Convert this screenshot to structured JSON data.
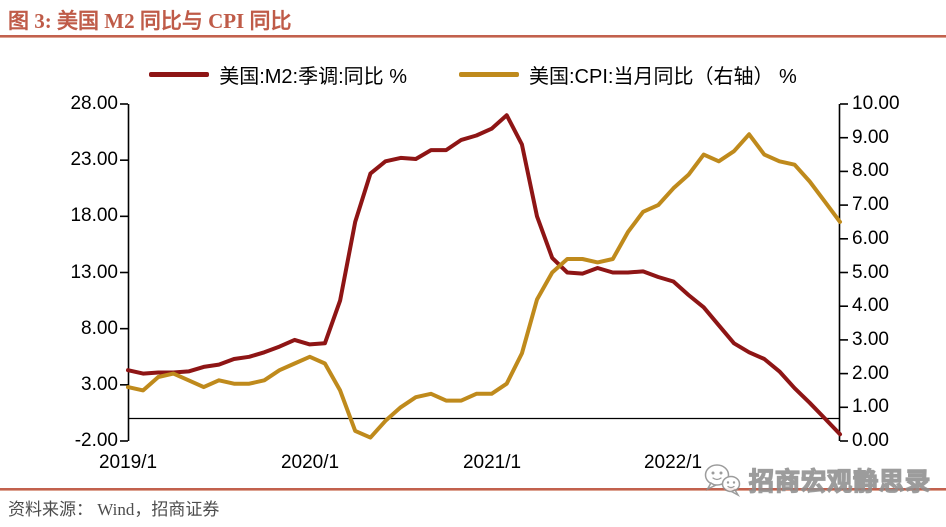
{
  "header": {
    "title": "图 3: 美国 M2 同比与 CPI 同比"
  },
  "footer": {
    "source_label": "资料来源： Wind，招商证券"
  },
  "watermark": {
    "text": "招商宏观静思录",
    "icon": "wechat-chat-bubbles-icon"
  },
  "colors": {
    "title_accent": "#bf5b48",
    "rule": "#c2614e",
    "m2_line": "#8e1515",
    "cpi_line": "#bf8a1c",
    "axis": "#000000",
    "source_text": "#4d4d4d"
  },
  "chart_data": {
    "type": "line",
    "title": "图 3: 美国 M2 同比与 CPI 同比",
    "grid": false,
    "legend_position": "top-center",
    "categories": [
      "2019/1",
      "2019/2",
      "2019/3",
      "2019/4",
      "2019/5",
      "2019/6",
      "2019/7",
      "2019/8",
      "2019/9",
      "2019/10",
      "2019/11",
      "2019/12",
      "2020/1",
      "2020/2",
      "2020/3",
      "2020/4",
      "2020/5",
      "2020/6",
      "2020/7",
      "2020/8",
      "2020/9",
      "2020/10",
      "2020/11",
      "2020/12",
      "2021/1",
      "2021/2",
      "2021/3",
      "2021/4",
      "2021/5",
      "2021/6",
      "2021/7",
      "2021/8",
      "2021/9",
      "2021/10",
      "2021/11",
      "2021/12",
      "2022/1",
      "2022/2",
      "2022/3",
      "2022/4",
      "2022/5",
      "2022/6",
      "2022/7",
      "2022/8",
      "2022/9",
      "2022/10",
      "2022/11",
      "2022/12"
    ],
    "x_axis": {
      "tick_labels": [
        "2019/1",
        "2020/1",
        "2021/1",
        "2022/1"
      ],
      "tick_month_indices": [
        0,
        12,
        24,
        36
      ]
    },
    "left_axis": {
      "range": [
        -2,
        28
      ],
      "tick_values": [
        28,
        23,
        18,
        13,
        8,
        3,
        -2
      ],
      "tick_labels": [
        "28.00",
        "23.00",
        "18.00",
        "13.00",
        "8.00",
        "3.00",
        "-2.00"
      ]
    },
    "right_axis": {
      "range": [
        0,
        10
      ],
      "tick_values": [
        10,
        9,
        8,
        7,
        6,
        5,
        4,
        3,
        2,
        1,
        0
      ],
      "tick_labels": [
        "10.00",
        "9.00",
        "8.00",
        "7.00",
        "6.00",
        "5.00",
        "4.00",
        "3.00",
        "2.00",
        "1.00",
        "0.00"
      ]
    },
    "baseline": {
      "axis": "left",
      "value": 0
    },
    "series": [
      {
        "name": "美国:M2:季调:同比 %",
        "axis": "left",
        "color": "#8e1515",
        "values": [
          4.3,
          4.0,
          4.1,
          4.1,
          4.2,
          4.6,
          4.8,
          5.3,
          5.5,
          5.9,
          6.4,
          7.0,
          6.6,
          6.7,
          10.5,
          17.5,
          21.8,
          22.9,
          23.2,
          23.1,
          23.9,
          23.9,
          24.8,
          25.2,
          25.8,
          27.0,
          24.4,
          18.0,
          14.3,
          13.0,
          12.9,
          13.4,
          13.0,
          13.0,
          13.1,
          12.6,
          12.2,
          11.0,
          9.9,
          8.3,
          6.7,
          5.9,
          5.3,
          4.2,
          2.7,
          1.4,
          0.0,
          -1.4
        ]
      },
      {
        "name": "美国:CPI:当月同比（右轴） %",
        "axis": "right",
        "color": "#bf8a1c",
        "values": [
          1.6,
          1.5,
          1.9,
          2.0,
          1.8,
          1.6,
          1.8,
          1.7,
          1.7,
          1.8,
          2.1,
          2.3,
          2.5,
          2.3,
          1.5,
          0.3,
          0.1,
          0.6,
          1.0,
          1.3,
          1.4,
          1.2,
          1.2,
          1.4,
          1.4,
          1.7,
          2.6,
          4.2,
          5.0,
          5.4,
          5.4,
          5.3,
          5.4,
          6.2,
          6.8,
          7.0,
          7.5,
          7.9,
          8.5,
          8.3,
          8.6,
          9.1,
          8.5,
          8.3,
          8.2,
          7.7,
          7.1,
          6.5
        ]
      }
    ]
  }
}
